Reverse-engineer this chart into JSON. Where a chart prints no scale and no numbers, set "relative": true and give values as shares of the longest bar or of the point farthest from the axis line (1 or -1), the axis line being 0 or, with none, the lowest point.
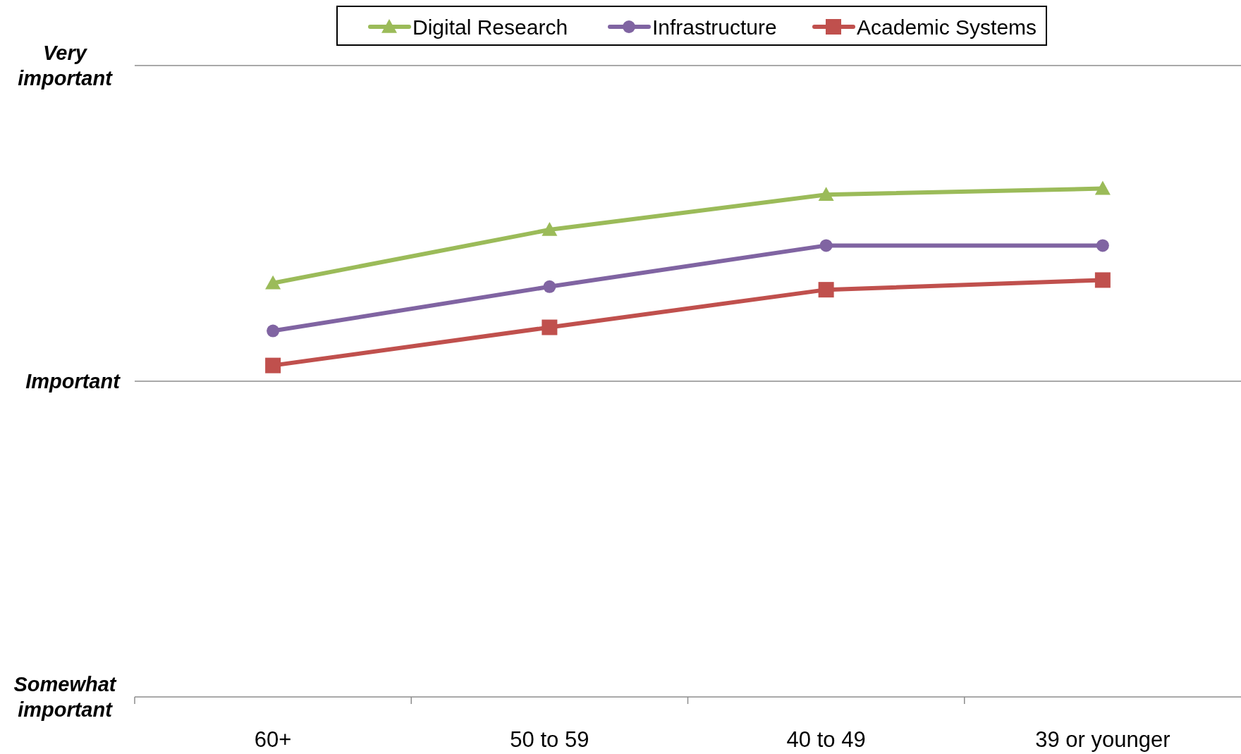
{
  "chart_data": {
    "type": "line",
    "categories": [
      "60+",
      "50 to 59",
      "40 to 49",
      "39 or younger"
    ],
    "relative": true,
    "series": [
      {
        "name": "Digital Research",
        "color": "#9bbb59",
        "marker": "triangle",
        "values": [
          0.814,
          0.919,
          0.988,
          1
        ]
      },
      {
        "name": "Infrastructure",
        "color": "#8064a2",
        "marker": "circle",
        "values": [
          0.72,
          0.807,
          0.888,
          0.888
        ]
      },
      {
        "name": "Academic Systems",
        "color": "#c0504d",
        "marker": "square",
        "values": [
          0.652,
          0.727,
          0.801,
          0.82
        ]
      }
    ],
    "ref_lines": [
      {
        "axis": "y",
        "value": 1.242,
        "label": "Very important",
        "color": "#8c8c8c"
      },
      {
        "axis": "y",
        "value": 0.621,
        "label": "Important",
        "color": "#8c8c8c"
      }
    ],
    "annotations": [
      "Somewhat important"
    ],
    "legend": "top",
    "line_style": "solid"
  }
}
